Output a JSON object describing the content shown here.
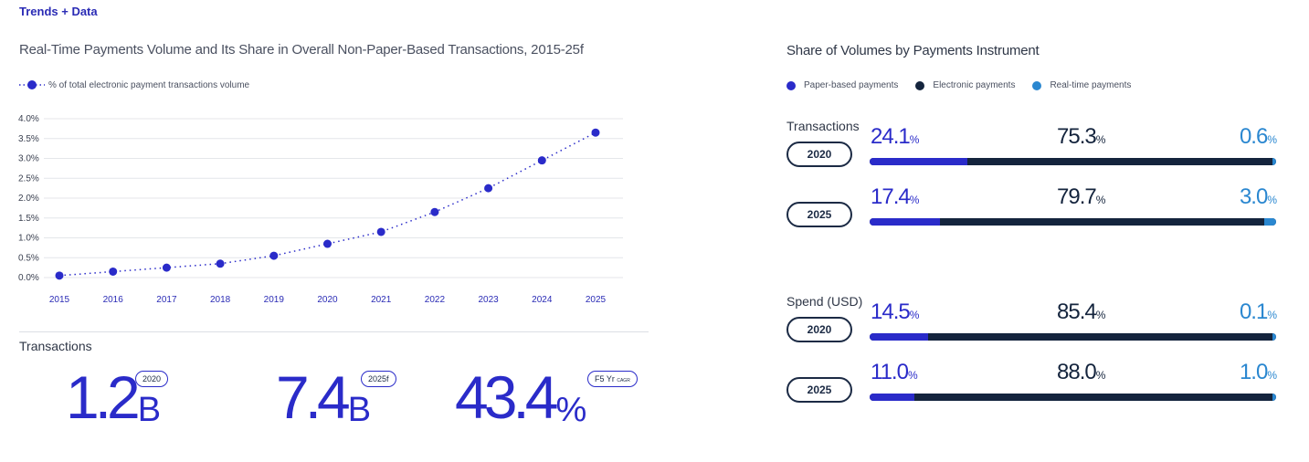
{
  "header": {
    "kicker": "Trends + Data"
  },
  "left": {
    "title": "Real-Time Payments Volume and Its Share in Overall Non-Paper-Based Transactions, 2015-25f",
    "legend_label": "% of total electronic payment transactions volume",
    "transactions_label": "Transactions",
    "stats": [
      {
        "value": "1.2",
        "unit": "B",
        "badge": "2020",
        "badge_small": ""
      },
      {
        "value": "7.4",
        "unit": "B",
        "badge": "2025f",
        "badge_small": ""
      },
      {
        "value": "43.4",
        "unit": "%",
        "badge": "F5 Yr",
        "badge_small": "CAGR"
      }
    ]
  },
  "chart_data": {
    "type": "line",
    "title": "Real-Time Payments Volume and Its Share in Overall Non-Paper-Based Transactions, 2015-25f",
    "series_name": "% of total electronic payment transactions volume",
    "x": [
      "2015",
      "2016",
      "2017",
      "2018",
      "2019",
      "2020",
      "2021",
      "2022",
      "2023",
      "2024",
      "2025"
    ],
    "y": [
      0.05,
      0.15,
      0.25,
      0.35,
      0.55,
      0.85,
      1.15,
      1.65,
      2.25,
      2.95,
      3.65
    ],
    "y_ticks": [
      "0.0%",
      "0.5%",
      "1.0%",
      "1.5%",
      "2.0%",
      "2.5%",
      "3.0%",
      "3.5%",
      "4.0%"
    ],
    "ylim": [
      0,
      4.0
    ],
    "grid": true,
    "color": "#2a2bc9"
  },
  "right": {
    "title": "Share of Volumes by Payments Instrument",
    "legend": [
      {
        "label": "Paper-based payments",
        "color": "#2a2bc9"
      },
      {
        "label": "Electronic payments",
        "color": "#14243d"
      },
      {
        "label": "Real-time payments",
        "color": "#2a87d0"
      }
    ],
    "sections": [
      {
        "title": "Transactions",
        "rows": [
          {
            "year": "2020",
            "paper": "24.1",
            "electronic": "75.3",
            "realtime": "0.6",
            "paper_v": 24.1,
            "electronic_v": 75.3,
            "realtime_v": 0.6
          },
          {
            "year": "2025",
            "paper": "17.4",
            "electronic": "79.7",
            "realtime": "3.0",
            "paper_v": 17.4,
            "electronic_v": 79.7,
            "realtime_v": 3.0
          }
        ]
      },
      {
        "title": "Spend (USD)",
        "rows": [
          {
            "year": "2020",
            "paper": "14.5",
            "electronic": "85.4",
            "realtime": "0.1",
            "paper_v": 14.5,
            "electronic_v": 85.4,
            "realtime_v": 0.1
          },
          {
            "year": "2025",
            "paper": "11.0",
            "electronic": "88.0",
            "realtime": "1.0",
            "paper_v": 11.0,
            "electronic_v": 88.0,
            "realtime_v": 1.0
          }
        ]
      }
    ],
    "pct_symbol": "%"
  }
}
